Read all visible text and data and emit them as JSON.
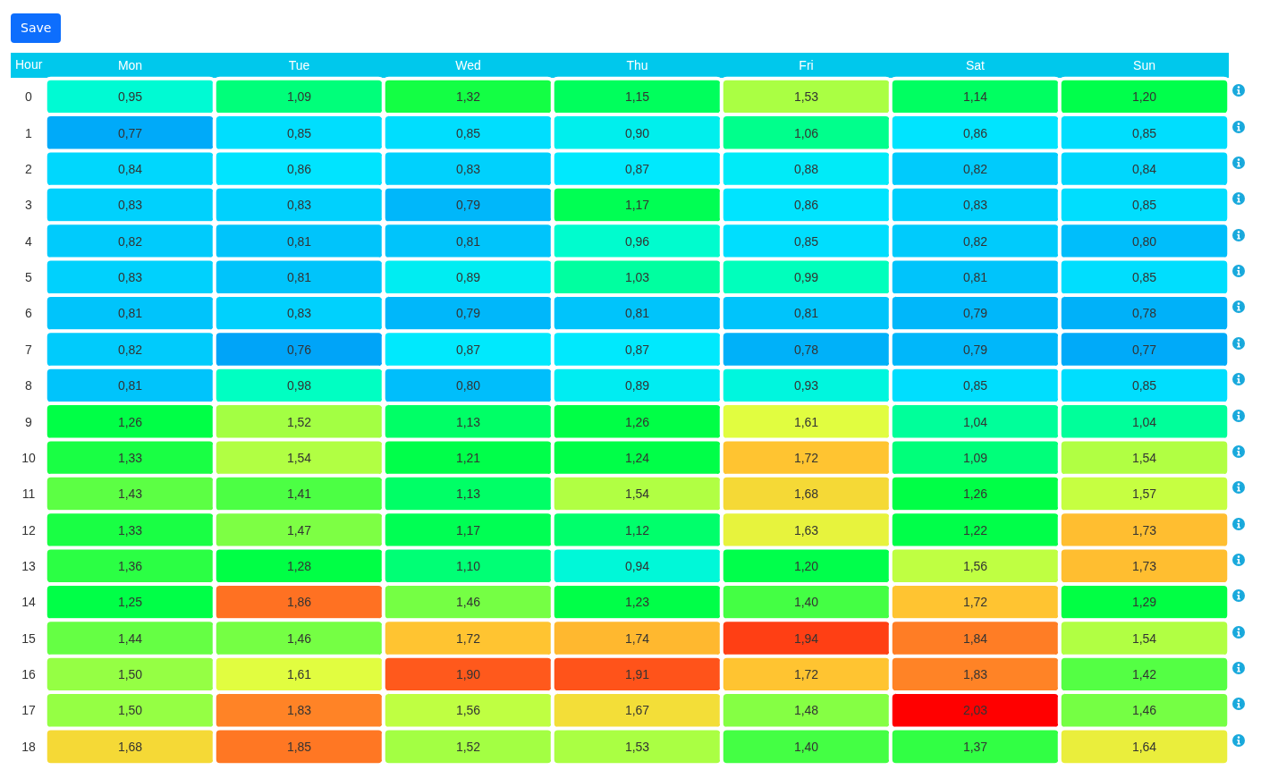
{
  "chart_data": {
    "type": "heatmap",
    "ylabel": "Hour",
    "annotations": [
      "Save"
    ],
    "categories": [
      "Mon",
      "Tue",
      "Wed",
      "Thu",
      "Fri",
      "Sat",
      "Sun"
    ],
    "y_categories": [
      "0",
      "1",
      "2",
      "3",
      "4",
      "5",
      "6",
      "7",
      "8",
      "9",
      "10",
      "11",
      "12",
      "13",
      "14",
      "15",
      "16",
      "17",
      "18"
    ],
    "cells": [
      [
        0.95,
        1.09,
        1.32,
        1.15,
        1.53,
        1.14,
        1.2
      ],
      [
        0.77,
        0.85,
        0.85,
        0.9,
        1.06,
        0.86,
        0.85
      ],
      [
        0.84,
        0.86,
        0.83,
        0.87,
        0.88,
        0.82,
        0.84
      ],
      [
        0.83,
        0.83,
        0.79,
        1.17,
        0.86,
        0.83,
        0.85
      ],
      [
        0.82,
        0.81,
        0.81,
        0.96,
        0.85,
        0.82,
        0.8
      ],
      [
        0.83,
        0.81,
        0.89,
        1.03,
        0.99,
        0.81,
        0.85
      ],
      [
        0.81,
        0.83,
        0.79,
        0.81,
        0.81,
        0.79,
        0.78
      ],
      [
        0.82,
        0.76,
        0.87,
        0.87,
        0.78,
        0.79,
        0.77
      ],
      [
        0.81,
        0.98,
        0.8,
        0.89,
        0.93,
        0.85,
        0.85
      ],
      [
        1.26,
        1.52,
        1.13,
        1.26,
        1.61,
        1.04,
        1.04
      ],
      [
        1.33,
        1.54,
        1.21,
        1.24,
        1.72,
        1.09,
        1.54
      ],
      [
        1.43,
        1.41,
        1.13,
        1.54,
        1.68,
        1.26,
        1.57
      ],
      [
        1.33,
        1.47,
        1.17,
        1.12,
        1.63,
        1.22,
        1.73
      ],
      [
        1.36,
        1.28,
        1.1,
        0.94,
        1.2,
        1.56,
        1.73
      ],
      [
        1.25,
        1.86,
        1.46,
        1.23,
        1.4,
        1.72,
        1.29
      ],
      [
        1.44,
        1.46,
        1.72,
        1.74,
        1.94,
        1.84,
        1.54
      ],
      [
        1.5,
        1.61,
        1.9,
        1.91,
        1.72,
        1.83,
        1.42
      ],
      [
        1.5,
        1.83,
        1.56,
        1.67,
        1.48,
        2.03,
        1.46
      ],
      [
        1.68,
        1.85,
        1.52,
        1.53,
        1.4,
        1.37,
        1.64
      ]
    ],
    "cell_labels": [
      [
        "0,95",
        "1,09",
        "1,32",
        "1,15",
        "1,53",
        "1,14",
        "1,20"
      ],
      [
        "0,77",
        "0,85",
        "0,85",
        "0,90",
        "1,06",
        "0,86",
        "0,85"
      ],
      [
        "0,84",
        "0,86",
        "0,83",
        "0,87",
        "0,88",
        "0,82",
        "0,84"
      ],
      [
        "0,83",
        "0,83",
        "0,79",
        "1,17",
        "0,86",
        "0,83",
        "0,85"
      ],
      [
        "0,82",
        "0,81",
        "0,81",
        "0,96",
        "0,85",
        "0,82",
        "0,80"
      ],
      [
        "0,83",
        "0,81",
        "0,89",
        "1,03",
        "0,99",
        "0,81",
        "0,85"
      ],
      [
        "0,81",
        "0,83",
        "0,79",
        "0,81",
        "0,81",
        "0,79",
        "0,78"
      ],
      [
        "0,82",
        "0,76",
        "0,87",
        "0,87",
        "0,78",
        "0,79",
        "0,77"
      ],
      [
        "0,81",
        "0,98",
        "0,80",
        "0,89",
        "0,93",
        "0,85",
        "0,85"
      ],
      [
        "1,26",
        "1,52",
        "1,13",
        "1,26",
        "1,61",
        "1,04",
        "1,04"
      ],
      [
        "1,33",
        "1,54",
        "1,21",
        "1,24",
        "1,72",
        "1,09",
        "1,54"
      ],
      [
        "1,43",
        "1,41",
        "1,13",
        "1,54",
        "1,68",
        "1,26",
        "1,57"
      ],
      [
        "1,33",
        "1,47",
        "1,17",
        "1,12",
        "1,63",
        "1,22",
        "1,73"
      ],
      [
        "1,36",
        "1,28",
        "1,10",
        "0,94",
        "1,20",
        "1,56",
        "1,73"
      ],
      [
        "1,25",
        "1,86",
        "1,46",
        "1,23",
        "1,40",
        "1,72",
        "1,29"
      ],
      [
        "1,44",
        "1,46",
        "1,72",
        "1,74",
        "1,94",
        "1,84",
        "1,54"
      ],
      [
        "1,50",
        "1,61",
        "1,90",
        "1,91",
        "1,72",
        "1,83",
        "1,42"
      ],
      [
        "1,50",
        "1,83",
        "1,56",
        "1,67",
        "1,48",
        "2,03",
        "1,46"
      ],
      [
        "1,68",
        "1,85",
        "1,52",
        "1,53",
        "1,40",
        "1,37",
        "1,64"
      ]
    ]
  }
}
